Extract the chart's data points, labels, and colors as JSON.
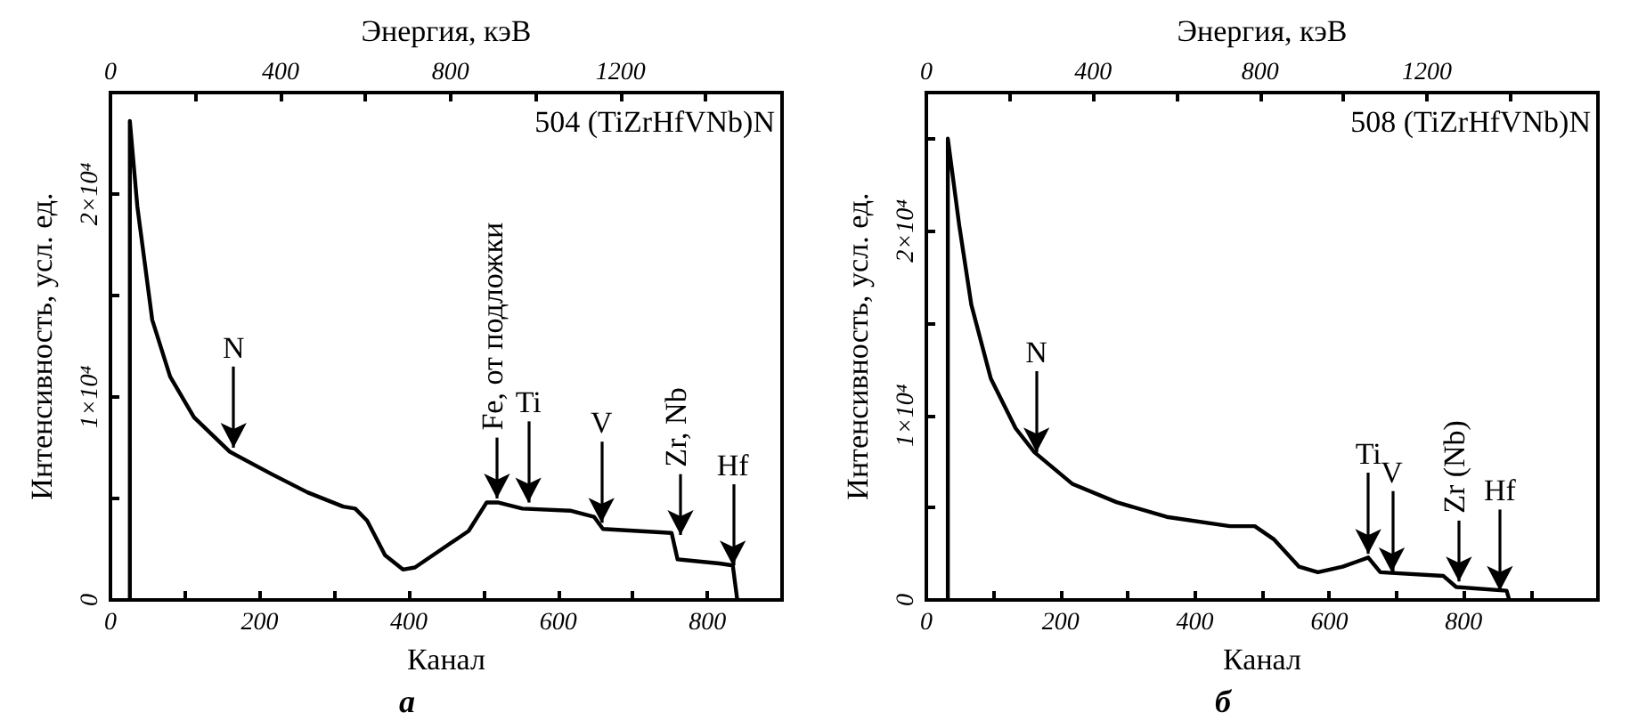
{
  "chart_data": [
    {
      "type": "line",
      "title": "504 (TiZrHfVNb)N",
      "xlabel": "Канал",
      "ylabel": "Интенсивность, усл. ед.",
      "x2label": "Энергия, кэВ",
      "x": [
        26,
        26,
        36,
        56,
        80,
        112,
        160,
        216,
        264,
        312,
        328,
        344,
        368,
        392,
        408,
        440,
        480,
        504,
        520,
        552,
        616,
        648,
        660,
        752,
        760,
        816,
        834,
        840
      ],
      "values": [
        0,
        23600,
        19400,
        13800,
        11000,
        9000,
        7300,
        6200,
        5300,
        4600,
        4500,
        3900,
        2200,
        1500,
        1600,
        2400,
        3400,
        4800,
        4800,
        4500,
        4400,
        4100,
        3500,
        3300,
        2000,
        1800,
        1700,
        0
      ],
      "color": "#000000",
      "xlim": [
        0,
        900
      ],
      "xticks": [
        0,
        {
          "value": 100,
          "label": null
        },
        200,
        {
          "value": 300,
          "label": null
        },
        400,
        {
          "value": 500,
          "label": null
        },
        600,
        {
          "value": 700,
          "label": null
        },
        800,
        {
          "value": 900,
          "label": null
        }
      ],
      "x2lim": [
        0,
        1580
      ],
      "x2ticks": [
        0,
        {
          "value": 200,
          "label": null
        },
        400,
        {
          "value": 600,
          "label": null
        },
        800,
        {
          "value": 1000,
          "label": null
        },
        1200,
        {
          "value": 1400,
          "label": null
        }
      ],
      "ylim": [
        0,
        25000
      ],
      "yticks": [
        0,
        {
          "value": 5000,
          "label": null
        },
        {
          "value": 10000,
          "label": "1×10⁴"
        },
        {
          "value": 15000,
          "label": null
        },
        {
          "value": 20000,
          "label": "2×10⁴"
        }
      ],
      "grid": false,
      "marker": "none",
      "line_style": "solid",
      "annotations": [
        {
          "text": "N",
          "x": 165,
          "y": 7500
        },
        {
          "text": "Fe, от подложки",
          "x": 518,
          "y": 5000
        },
        {
          "text": "Ti",
          "x": 560,
          "y": 4800
        },
        {
          "text": "V",
          "x": 658,
          "y": 3800
        },
        {
          "text": "Zr, Nb",
          "x": 764,
          "y": 3200
        },
        {
          "text": "Hf",
          "x": 834,
          "y": 1700
        },
        "а"
      ]
    },
    {
      "type": "line",
      "title": "508 (TiZrHfVNb)N",
      "xlabel": "Канал",
      "ylabel": "Интенсивность, усл. ед.",
      "x2label": "Энергия, кэВ",
      "x": [
        32,
        32,
        49,
        67,
        96,
        133,
        161,
        217,
        283,
        358,
        452,
        489,
        517,
        555,
        583,
        620,
        658,
        676,
        770,
        789,
        864,
        868
      ],
      "values": [
        0,
        25000,
        20300,
        16000,
        12000,
        9300,
        8000,
        6300,
        5300,
        4500,
        4000,
        4000,
        3300,
        1800,
        1500,
        1800,
        2300,
        1500,
        1300,
        700,
        500,
        0
      ],
      "color": "#000000",
      "xlim": [
        0,
        1000
      ],
      "xticks": [
        0,
        {
          "value": 100,
          "label": null
        },
        200,
        {
          "value": 300,
          "label": null
        },
        400,
        {
          "value": 500,
          "label": null
        },
        600,
        {
          "value": 700,
          "label": null
        },
        800,
        {
          "value": 900,
          "label": null
        }
      ],
      "x2lim": [
        0,
        1610
      ],
      "x2ticks": [
        0,
        {
          "value": 200,
          "label": null
        },
        400,
        {
          "value": 600,
          "label": null
        },
        800,
        {
          "value": 1000,
          "label": null
        },
        1200,
        {
          "value": 1400,
          "label": null
        }
      ],
      "ylim": [
        0,
        27500
      ],
      "yticks": [
        0,
        {
          "value": 5000,
          "label": null
        },
        {
          "value": 10000,
          "label": "1×10⁴"
        },
        {
          "value": 15000,
          "label": null
        },
        {
          "value": 20000,
          "label": "2×10⁴"
        },
        {
          "value": 25000,
          "label": null
        }
      ],
      "grid": false,
      "marker": "none",
      "line_style": "solid",
      "annotations": [
        {
          "text": "N",
          "x": 164,
          "y": 8000
        },
        {
          "text": "Ti",
          "x": 658,
          "y": 2500
        },
        {
          "text": "V",
          "x": 693,
          "y": 1500
        },
        {
          "text": "Zr (Nb)",
          "x": 793,
          "y": 1000
        },
        {
          "text": "Hf",
          "x": 854,
          "y": 500
        },
        "б"
      ]
    }
  ]
}
